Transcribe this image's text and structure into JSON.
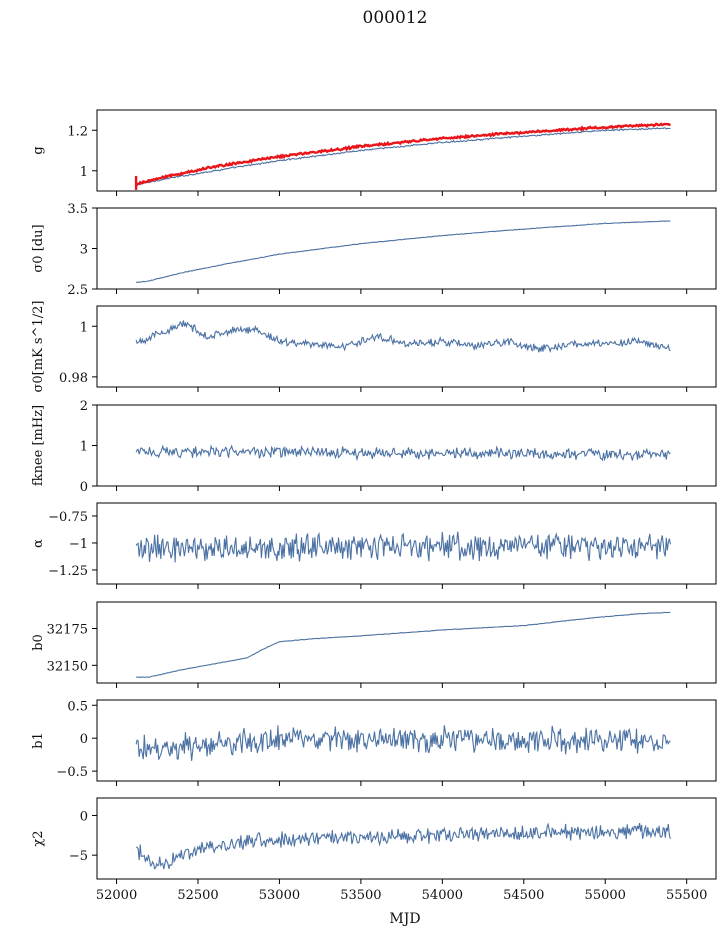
{
  "title": "000012",
  "colors": {
    "series": "#4c72a4",
    "overlay": "#e8161b",
    "axis": "#000000"
  },
  "chart_data": {
    "type": "line",
    "shared_x": true,
    "xlabel": "MJD",
    "xlim": [
      51880,
      55680
    ],
    "xticks": [
      52000,
      52500,
      53000,
      53500,
      54000,
      54500,
      55000,
      55500
    ],
    "x_range_of_data": [
      52120,
      55400
    ],
    "panels": [
      {
        "ylabel": "g",
        "ylim": [
          0.9,
          1.3
        ],
        "yticks": [
          1.0,
          1.2
        ],
        "series": [
          {
            "role": "model",
            "color": "#4c72a4",
            "noise": 0.003,
            "x": [
              52120,
              52300,
              52600,
              53000,
              53500,
              54000,
              54500,
              55000,
              55400
            ],
            "y": [
              0.93,
              0.96,
              1.0,
              1.05,
              1.1,
              1.14,
              1.17,
              1.2,
              1.21
            ]
          },
          {
            "role": "overlay",
            "color": "#e8161b",
            "noise": 0.004,
            "x": [
              52120,
              52300,
              52600,
              53000,
              53500,
              54000,
              54500,
              55000,
              55400
            ],
            "y": [
              0.935,
              0.97,
              1.02,
              1.07,
              1.12,
              1.16,
              1.19,
              1.215,
              1.23
            ]
          }
        ]
      },
      {
        "ylabel": "σ0 [du]",
        "ylim": [
          2.5,
          3.5
        ],
        "yticks": [
          2.5,
          3.0,
          3.5
        ],
        "series": [
          {
            "color": "#4c72a4",
            "noise": 0.003,
            "x": [
              52120,
              52200,
              52400,
              52700,
              53000,
              53500,
              54000,
              54500,
              55000,
              55400
            ],
            "y": [
              2.58,
              2.6,
              2.7,
              2.82,
              2.93,
              3.06,
              3.16,
              3.24,
              3.31,
              3.34
            ]
          }
        ]
      },
      {
        "ylabel": "σ0[mK s^1/2]",
        "ylim": [
          0.976,
          1.008
        ],
        "yticks": [
          0.98,
          1.0
        ],
        "series": [
          {
            "color": "#4c72a4",
            "noise": 0.0012,
            "x": [
              52120,
              52180,
              52300,
              52420,
              52560,
              52700,
              52850,
              53000,
              53200,
              53400,
              53600,
              53800,
              54000,
              54200,
              54400,
              54600,
              54800,
              55000,
              55200,
              55400
            ],
            "y": [
              0.994,
              0.995,
              0.998,
              1.001,
              0.996,
              0.998,
              0.999,
              0.994,
              0.993,
              0.992,
              0.996,
              0.993,
              0.994,
              0.992,
              0.994,
              0.991,
              0.993,
              0.993,
              0.994,
              0.991
            ]
          }
        ]
      },
      {
        "ylabel": "fknee [mHz]",
        "ylim": [
          0,
          2
        ],
        "yticks": [
          0,
          1,
          2
        ],
        "series": [
          {
            "color": "#4c72a4",
            "noise": 0.11,
            "x": [
              52120,
              52600,
              53000,
              53500,
              54000,
              54500,
              55000,
              55400
            ],
            "y": [
              0.85,
              0.84,
              0.83,
              0.82,
              0.81,
              0.8,
              0.79,
              0.78
            ]
          }
        ]
      },
      {
        "ylabel": "α",
        "ylim": [
          -1.38,
          -0.63
        ],
        "yticks": [
          -1.25,
          -1.0,
          -0.75
        ],
        "series": [
          {
            "color": "#4c72a4",
            "noise": 0.1,
            "x": [
              52120,
              53000,
              54000,
              55000,
              55400
            ],
            "y": [
              -1.05,
              -1.04,
              -1.03,
              -1.03,
              -1.03
            ]
          }
        ]
      },
      {
        "ylabel": "b0",
        "ylim": [
          32138,
          32193
        ],
        "yticks": [
          32150,
          32175
        ],
        "series": [
          {
            "color": "#4c72a4",
            "noise": 0.15,
            "x": [
              52120,
              52200,
              52400,
              52600,
              52800,
              52900,
              53000,
              53200,
              53500,
              54000,
              54500,
              54900,
              55200,
              55400
            ],
            "y": [
              32142,
              32142,
              32147,
              32151,
              32155,
              32161,
              32166,
              32168,
              32170,
              32174,
              32177,
              32182,
              32185,
              32186
            ]
          }
        ]
      },
      {
        "ylabel": "b1",
        "ylim": [
          -0.65,
          0.58
        ],
        "yticks": [
          -0.5,
          0.0,
          0.5
        ],
        "series": [
          {
            "color": "#4c72a4",
            "noise": 0.15,
            "x": [
              52120,
              52300,
              52700,
              53000,
              53500,
              54000,
              54500,
              55000,
              55400
            ],
            "y": [
              -0.1,
              -0.15,
              -0.08,
              -0.02,
              -0.02,
              -0.01,
              -0.03,
              -0.04,
              -0.02
            ]
          }
        ]
      },
      {
        "ylabel": "χ2",
        "ylim": [
          -8,
          2.2
        ],
        "yticks": [
          -5,
          0
        ],
        "series": [
          {
            "color": "#4c72a4",
            "noise": 0.75,
            "x": [
              52120,
              52200,
              52300,
              52500,
              52800,
              53000,
              53300,
              53600,
              54000,
              54500,
              55000,
              55400
            ],
            "y": [
              -4.3,
              -5.5,
              -6.0,
              -4.3,
              -3.2,
              -3.0,
              -2.9,
              -2.8,
              -2.4,
              -2.2,
              -2.0,
              -2.0
            ]
          }
        ]
      }
    ]
  }
}
